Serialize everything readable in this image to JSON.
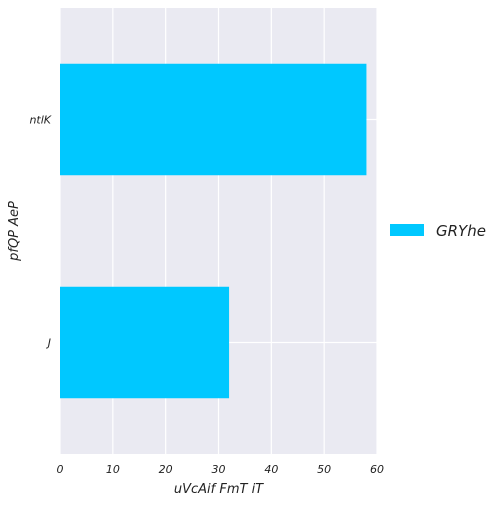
{
  "chart_data": {
    "type": "bar",
    "orientation": "horizontal",
    "categories": [
      "ntlK",
      "J"
    ],
    "series": [
      {
        "name": "GRYhe",
        "values": [
          58,
          32
        ],
        "color": "#00c8ff"
      }
    ],
    "xlabel": "uVcAif FmT iT",
    "ylabel": "pfQP AeP",
    "xlim": [
      0,
      60
    ],
    "xticks": [
      0,
      10,
      20,
      30,
      40,
      50,
      60
    ],
    "grid": true,
    "legend_position": "right",
    "background_color": "#eaeaf2"
  }
}
